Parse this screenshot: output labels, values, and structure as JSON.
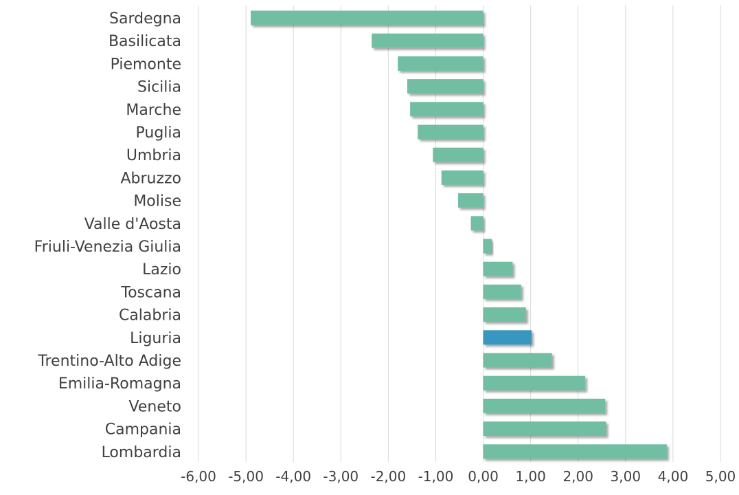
{
  "colors": {
    "bar_default": "#72bea3",
    "bar_highlight": "#3797be",
    "grid": "#d9d9d9",
    "label_text": "#404040"
  },
  "chart_data": {
    "type": "bar",
    "orientation": "horizontal",
    "title": "",
    "xlabel": "",
    "ylabel": "",
    "xlim": [
      -6,
      5
    ],
    "grid": "vertical",
    "legend": "none",
    "highlighted_category": "Liguria",
    "categories": [
      "Sardegna",
      "Basilicata",
      "Piemonte",
      "Sicilia",
      "Marche",
      "Puglia",
      "Umbria",
      "Abruzzo",
      "Molise",
      "Valle d'Aosta",
      "Friuli-Venezia Giulia",
      "Lazio",
      "Toscana",
      "Calabria",
      "Liguria",
      "Trentino-Alto Adige",
      "Emilia-Romagna",
      "Veneto",
      "Campania",
      "Lombardia"
    ],
    "values": [
      -4.9,
      -2.35,
      -1.8,
      -1.6,
      -1.54,
      -1.38,
      -1.06,
      -0.88,
      -0.53,
      -0.26,
      0.18,
      0.62,
      0.8,
      0.9,
      1.02,
      1.45,
      2.15,
      2.57,
      2.59,
      3.87
    ],
    "x_ticks": [
      "-6,00",
      "-5,00",
      "-4,00",
      "-3,00",
      "-2,00",
      "-1,00",
      "0,00",
      "1,00",
      "2,00",
      "3,00",
      "4,00",
      "5,00"
    ]
  }
}
